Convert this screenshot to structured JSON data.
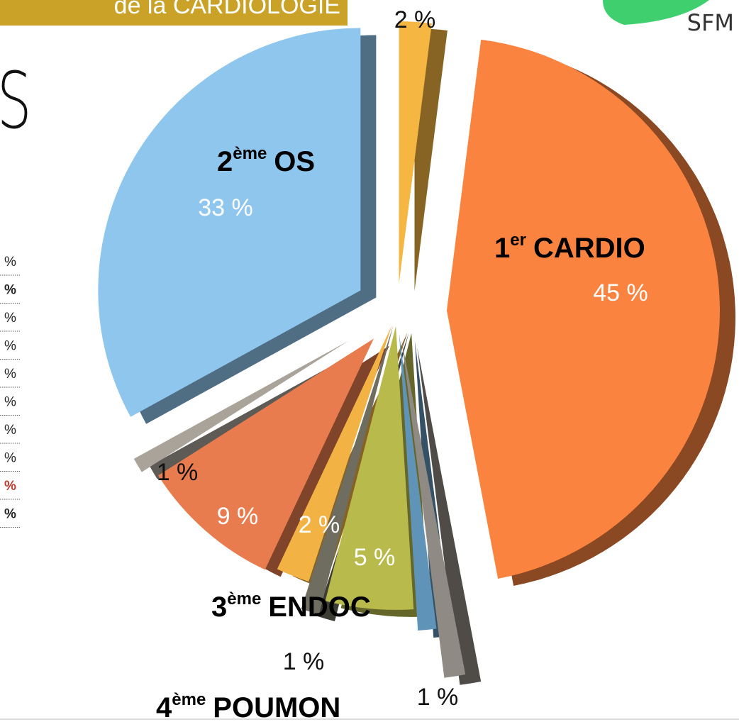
{
  "chart_data": {
    "type": "pie",
    "banner": "de la CARDIOLOGIE",
    "heading": "S",
    "logo": "SFM",
    "side_list": [
      {
        "text": "%",
        "bold": false,
        "color": "#222222"
      },
      {
        "text": "%",
        "bold": true,
        "color": "#222222"
      },
      {
        "text": "%",
        "bold": false,
        "color": "#222222"
      },
      {
        "text": "%",
        "bold": false,
        "color": "#222222"
      },
      {
        "text": "%",
        "bold": false,
        "color": "#222222"
      },
      {
        "text": "%",
        "bold": false,
        "color": "#222222"
      },
      {
        "text": "%",
        "bold": false,
        "color": "#222222"
      },
      {
        "text": "%",
        "bold": false,
        "color": "#222222"
      },
      {
        "text": "%",
        "bold": true,
        "color": "#c0392b"
      },
      {
        "text": "%",
        "bold": true,
        "color": "#222222"
      }
    ],
    "values": [
      2,
      45,
      1,
      1,
      5,
      1,
      2,
      9,
      1,
      33
    ],
    "value_labels": [
      "2 %",
      "45 %",
      "1 %",
      null,
      "5 %",
      "1 %",
      "2 %",
      "9 %",
      "1 %",
      "33 %"
    ],
    "colors": [
      "#f5b642",
      "#fb8340",
      "#8f8a83",
      "#5f93b8",
      "#b8bb4c",
      "#6f6d60",
      "#f3b344",
      "#e97c4e",
      "#aaa39a",
      "#8fc6ee"
    ],
    "annotations": [
      {
        "rank": "1",
        "sup": "er",
        "text": "CARDIO"
      },
      {
        "rank": "2",
        "sup": "ème",
        "text": "OS"
      },
      {
        "rank": "3",
        "sup": "ème",
        "text": "ENDOC"
      },
      {
        "rank": "4",
        "sup": "ème",
        "text": "POUMON"
      }
    ]
  }
}
